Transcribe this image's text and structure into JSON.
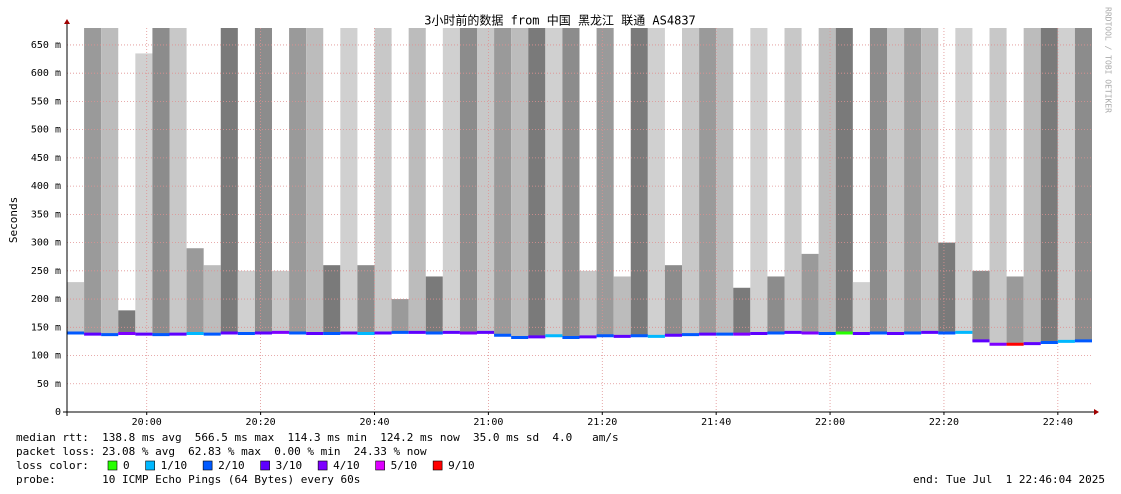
{
  "chart_data": {
    "type": "smoke",
    "title": "3小时前的数据 from 中国 黑龙江 联通 AS4837",
    "y_label": "Seconds",
    "side_text": "RRDTOOL / TOBI OETIKER",
    "x": [
      "19:46",
      "19:49",
      "19:52",
      "19:55",
      "19:58",
      "20:01",
      "20:04",
      "20:07",
      "20:10",
      "20:13",
      "20:16",
      "20:19",
      "20:22",
      "20:25",
      "20:28",
      "20:31",
      "20:34",
      "20:37",
      "20:40",
      "20:43",
      "20:46",
      "20:49",
      "20:52",
      "20:55",
      "20:58",
      "21:01",
      "21:04",
      "21:07",
      "21:10",
      "21:13",
      "21:16",
      "21:19",
      "21:22",
      "21:25",
      "21:28",
      "21:31",
      "21:34",
      "21:37",
      "21:40",
      "21:43",
      "21:46",
      "21:49",
      "21:52",
      "21:55",
      "21:58",
      "22:01",
      "22:04",
      "22:07",
      "22:10",
      "22:13",
      "22:16",
      "22:19",
      "22:22",
      "22:25",
      "22:28",
      "22:31",
      "22:34",
      "22:37",
      "22:40",
      "22:43"
    ],
    "median": [
      0.14,
      0.138,
      0.137,
      0.139,
      0.138,
      0.137,
      0.138,
      0.139,
      0.138,
      0.14,
      0.139,
      0.14,
      0.141,
      0.14,
      0.139,
      0.139,
      0.14,
      0.139,
      0.14,
      0.141,
      0.141,
      0.14,
      0.141,
      0.14,
      0.141,
      0.136,
      0.132,
      0.133,
      0.135,
      0.132,
      0.133,
      0.135,
      0.134,
      0.135,
      0.134,
      0.136,
      0.137,
      0.138,
      0.138,
      0.138,
      0.139,
      0.14,
      0.141,
      0.14,
      0.139,
      0.14,
      0.139,
      0.14,
      0.139,
      0.14,
      0.141,
      0.14,
      0.141,
      0.126,
      0.12,
      0.12,
      0.121,
      0.123,
      0.125,
      0.126
    ],
    "smoke_max": [
      0.23,
      0.68,
      0.68,
      0.18,
      0.635,
      0.68,
      0.68,
      0.29,
      0.26,
      0.68,
      0.25,
      0.68,
      0.25,
      0.68,
      0.68,
      0.26,
      0.68,
      0.26,
      0.68,
      0.2,
      0.68,
      0.24,
      0.68,
      0.68,
      0.68,
      0.68,
      0.68,
      0.68,
      0.68,
      0.68,
      0.25,
      0.68,
      0.24,
      0.68,
      0.68,
      0.26,
      0.68,
      0.68,
      0.68,
      0.22,
      0.68,
      0.24,
      0.68,
      0.28,
      0.68,
      0.68,
      0.23,
      0.68,
      0.68,
      0.68,
      0.68,
      0.3,
      0.68,
      0.25,
      0.68,
      0.24,
      0.68,
      0.68,
      0.68,
      0.68
    ],
    "loss": [
      2,
      3,
      2,
      4,
      3,
      2,
      3,
      1,
      2,
      3,
      2,
      3,
      4,
      2,
      3,
      2,
      3,
      1,
      3,
      2,
      3,
      2,
      3,
      4,
      3,
      2,
      2,
      3,
      1,
      2,
      3,
      2,
      3,
      2,
      1,
      3,
      2,
      3,
      2,
      4,
      3,
      2,
      3,
      4,
      2,
      0,
      3,
      2,
      3,
      2,
      3,
      2,
      1,
      3,
      4,
      6,
      3,
      2,
      1,
      2
    ],
    "xlim": [
      "19:46",
      "22:46"
    ],
    "xticks": [
      "20:00",
      "20:20",
      "20:40",
      "21:00",
      "21:20",
      "21:40",
      "22:00",
      "22:20",
      "22:40"
    ],
    "ylim": [
      0,
      0.68
    ],
    "yticks": [
      0,
      {
        "value": 0.05,
        "label": "50 m"
      },
      {
        "value": 0.1,
        "label": "100 m"
      },
      {
        "value": 0.15,
        "label": "150 m"
      },
      {
        "value": 0.2,
        "label": "200 m"
      },
      {
        "value": 0.25,
        "label": "250 m"
      },
      {
        "value": 0.3,
        "label": "300 m"
      },
      {
        "value": 0.35,
        "label": "350 m"
      },
      {
        "value": 0.4,
        "label": "400 m"
      },
      {
        "value": 0.45,
        "label": "450 m"
      },
      {
        "value": 0.5,
        "label": "500 m"
      },
      {
        "value": 0.55,
        "label": "550 m"
      },
      {
        "value": 0.6,
        "label": "600 m"
      },
      {
        "value": 0.65,
        "label": "650 m"
      }
    ],
    "grid": true,
    "stats": [
      "median rtt:  138.8 ms avg  566.5 ms max  114.3 ms min  124.2 ms now  35.0 ms sd  4.0   am/s",
      "packet loss: 23.08 % avg  62.83 % max  0.00 % min  24.33 % now"
    ],
    "loss_label": "loss color:",
    "loss_legend": [
      {
        "label": "0",
        "color": "#26ff00"
      },
      {
        "label": "1/10",
        "color": "#00b8ff"
      },
      {
        "label": "2/10",
        "color": "#0059ff"
      },
      {
        "label": "3/10",
        "color": "#5e00ff"
      },
      {
        "label": "4/10",
        "color": "#7e00ff"
      },
      {
        "label": "5/10",
        "color": "#dd00ff"
      },
      {
        "label": "9/10",
        "color": "#ff0000"
      }
    ],
    "probe": "probe:       10 ICMP Echo Pings (64 Bytes) every 60s",
    "end": "end: Tue Jul  1 22:46:04 2025"
  }
}
